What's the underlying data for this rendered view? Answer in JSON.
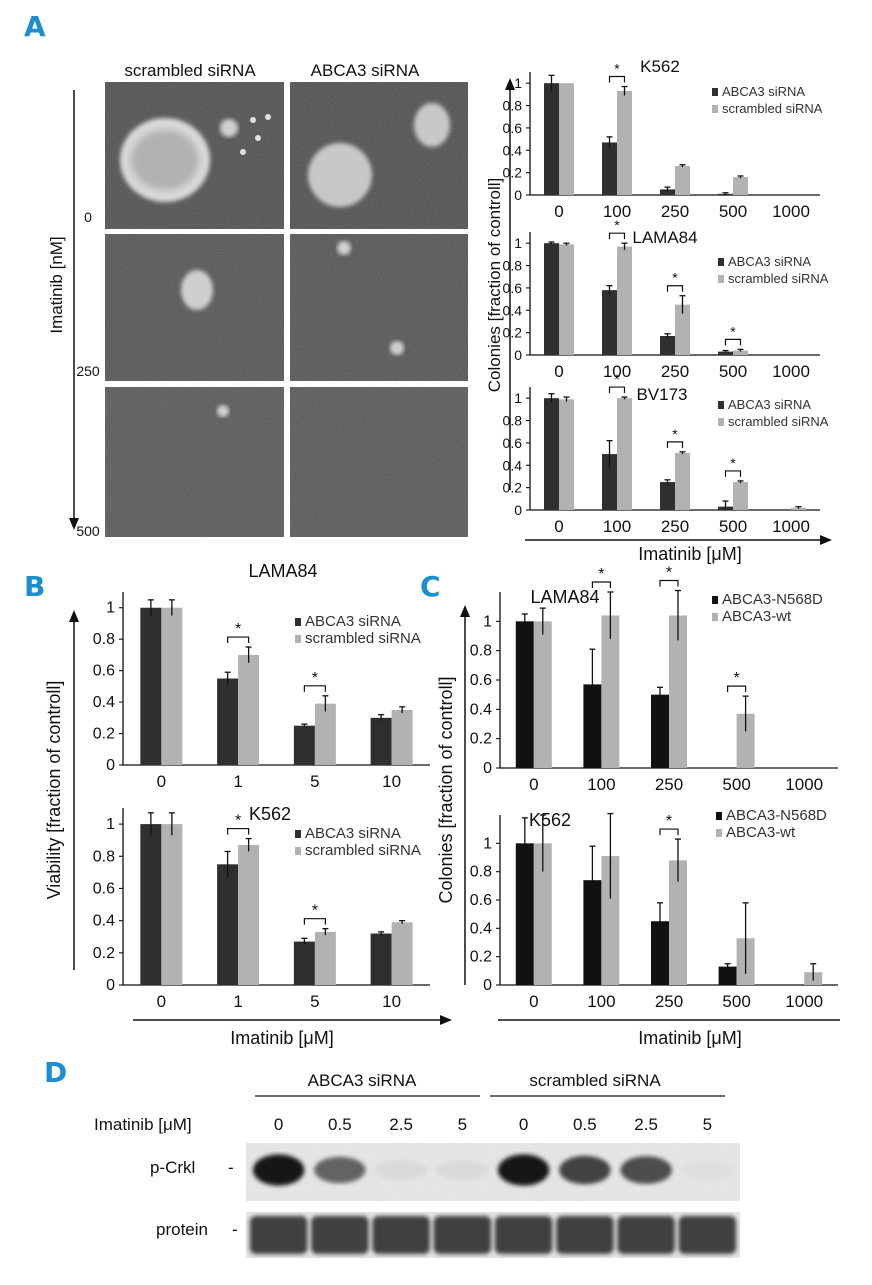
{
  "panel_letters": {
    "a": "A",
    "b": "B",
    "c": "C",
    "d": "D"
  },
  "colors": {
    "accent": "#1a8fd0",
    "abca3": "#333333",
    "scrambled": "#b0b0b0",
    "n568d": "#111111",
    "wt": "#b0b0b0"
  },
  "panel_a": {
    "col_labels": [
      "scrambled siRNA",
      "ABCA3 siRNA"
    ],
    "row_labels": [
      "0",
      "250",
      "500"
    ],
    "y_title": "Imatinib [nM]"
  },
  "labels": {
    "colonies_axis": "Colonies [fraction of controll]",
    "viability_axis": "Viability [fraction of controll]",
    "imatinib_axis": "Imatinib [μM]"
  },
  "chart_data": [
    {
      "id": "a_k562",
      "type": "bar",
      "title": "K562",
      "categories": [
        "0",
        "100",
        "250",
        "500",
        "1000"
      ],
      "series": [
        {
          "name": "ABCA3 siRNA",
          "values": [
            1.0,
            0.47,
            0.05,
            0.01,
            0.0
          ],
          "errors": [
            0.07,
            0.05,
            0.02,
            0.01,
            0.0
          ]
        },
        {
          "name": "scrambled siRNA",
          "values": [
            1.0,
            0.93,
            0.26,
            0.16,
            0.0
          ],
          "errors": [
            0.0,
            0.04,
            0.01,
            0.01,
            0.0
          ]
        }
      ],
      "yticks": [
        "0",
        "0.2",
        "0.4",
        "0.6",
        "0.8",
        "1"
      ],
      "ylim": [
        0,
        1.1
      ],
      "significance": [
        {
          "cat": 1,
          "label": "*"
        }
      ]
    },
    {
      "id": "a_lama84",
      "type": "bar",
      "title": "LAMA84",
      "categories": [
        "0",
        "100",
        "250",
        "500",
        "1000"
      ],
      "series": [
        {
          "name": "ABCA3 siRNA",
          "values": [
            1.0,
            0.58,
            0.17,
            0.03,
            0.0
          ],
          "errors": [
            0.01,
            0.04,
            0.02,
            0.01,
            0.0
          ]
        },
        {
          "name": "scrambled siRNA",
          "values": [
            0.99,
            0.97,
            0.45,
            0.04,
            0.0
          ],
          "errors": [
            0.01,
            0.03,
            0.08,
            0.01,
            0.0
          ]
        }
      ],
      "yticks": [
        "0",
        "0.2",
        "0.4",
        "0.6",
        "0.8",
        "1"
      ],
      "ylim": [
        0,
        1.1
      ],
      "significance": [
        {
          "cat": 1,
          "label": "*"
        },
        {
          "cat": 2,
          "label": "*"
        },
        {
          "cat": 3,
          "label": "*"
        }
      ]
    },
    {
      "id": "a_bv173",
      "type": "bar",
      "title": "BV173",
      "categories": [
        "0",
        "100",
        "250",
        "500",
        "1000"
      ],
      "series": [
        {
          "name": "ABCA3 siRNA",
          "values": [
            1.0,
            0.5,
            0.25,
            0.03,
            0.0
          ],
          "errors": [
            0.04,
            0.12,
            0.02,
            0.05,
            0.0
          ]
        },
        {
          "name": "scrambled siRNA",
          "values": [
            0.99,
            1.0,
            0.51,
            0.25,
            0.02
          ],
          "errors": [
            0.02,
            0.01,
            0.01,
            0.01,
            0.01
          ]
        }
      ],
      "yticks": [
        "0",
        "0.2",
        "0.4",
        "0.6",
        "0.8",
        "1"
      ],
      "ylim": [
        0,
        1.1
      ],
      "significance": [
        {
          "cat": 1,
          "label": "*"
        },
        {
          "cat": 2,
          "label": "*"
        },
        {
          "cat": 3,
          "label": "*"
        }
      ]
    },
    {
      "id": "b_lama84",
      "type": "bar",
      "title": "LAMA84",
      "categories": [
        "0",
        "1",
        "5",
        "10"
      ],
      "series": [
        {
          "name": "ABCA3 siRNA",
          "values": [
            1.0,
            0.55,
            0.25,
            0.3
          ],
          "errors": [
            0.05,
            0.04,
            0.01,
            0.02
          ]
        },
        {
          "name": "scrambled siRNA",
          "values": [
            1.0,
            0.7,
            0.39,
            0.35
          ],
          "errors": [
            0.05,
            0.05,
            0.05,
            0.02
          ]
        }
      ],
      "yticks": [
        "0",
        "0.2",
        "0.4",
        "0.6",
        "0.8",
        "1"
      ],
      "ylim": [
        0,
        1.1
      ],
      "significance": [
        {
          "cat": 1,
          "label": "*"
        },
        {
          "cat": 2,
          "label": "*"
        }
      ]
    },
    {
      "id": "b_k562",
      "type": "bar",
      "title": "K562",
      "categories": [
        "0",
        "1",
        "5",
        "10"
      ],
      "series": [
        {
          "name": "ABCA3 siRNA",
          "values": [
            1.0,
            0.75,
            0.27,
            0.32
          ],
          "errors": [
            0.07,
            0.08,
            0.02,
            0.01
          ]
        },
        {
          "name": "scrambled siRNA",
          "values": [
            1.0,
            0.87,
            0.33,
            0.39
          ],
          "errors": [
            0.07,
            0.04,
            0.02,
            0.01
          ]
        }
      ],
      "yticks": [
        "0",
        "0.2",
        "0.4",
        "0.6",
        "0.8",
        "1"
      ],
      "ylim": [
        0,
        1.1
      ],
      "significance": [
        {
          "cat": 1,
          "label": "*"
        },
        {
          "cat": 2,
          "label": "*"
        }
      ]
    },
    {
      "id": "c_lama84",
      "type": "bar",
      "title": "LAMA84",
      "categories": [
        "0",
        "100",
        "250",
        "500",
        "1000"
      ],
      "series": [
        {
          "name": "ABCA3-N568D",
          "values": [
            1.0,
            0.57,
            0.5,
            0.0,
            0.0
          ],
          "errors": [
            0.05,
            0.24,
            0.05,
            0.0,
            0.0
          ]
        },
        {
          "name": "ABCA3-wt",
          "values": [
            1.0,
            1.04,
            1.04,
            0.37,
            0.0
          ],
          "errors": [
            0.09,
            0.16,
            0.17,
            0.12,
            0.0
          ]
        }
      ],
      "yticks": [
        "0",
        "0.2",
        "0.4",
        "0.6",
        "0.8",
        "1"
      ],
      "ylim": [
        0,
        1.2
      ],
      "significance": [
        {
          "cat": 1,
          "label": "*"
        },
        {
          "cat": 2,
          "label": "*"
        },
        {
          "cat": 3,
          "label": "*"
        }
      ]
    },
    {
      "id": "c_k562",
      "type": "bar",
      "title": "K562",
      "categories": [
        "0",
        "100",
        "250",
        "500",
        "1000"
      ],
      "series": [
        {
          "name": "ABCA3-N568D",
          "values": [
            1.0,
            0.74,
            0.45,
            0.13,
            0.0
          ],
          "errors": [
            0.18,
            0.24,
            0.13,
            0.02,
            0.0
          ]
        },
        {
          "name": "ABCA3-wt",
          "values": [
            1.0,
            0.91,
            0.88,
            0.33,
            0.09
          ],
          "errors": [
            0.2,
            0.3,
            0.15,
            0.25,
            0.06
          ]
        }
      ],
      "yticks": [
        "0",
        "0.2",
        "0.4",
        "0.6",
        "0.8",
        "1"
      ],
      "ylim": [
        0,
        1.2
      ],
      "significance": [
        {
          "cat": 2,
          "label": "*"
        }
      ]
    }
  ],
  "panel_d": {
    "group_labels": [
      "ABCA3 siRNA",
      "scrambled siRNA"
    ],
    "imatinib_label": "Imatinib [μM]",
    "lane_labels": [
      "0",
      "0.5",
      "2.5",
      "5",
      "0",
      "0.5",
      "2.5",
      "5"
    ],
    "row_labels": [
      "p-Crkl",
      "protein"
    ],
    "pcrkl_intensity": [
      0.95,
      0.6,
      0.08,
      0.08,
      0.95,
      0.75,
      0.7,
      0.06
    ],
    "protein_intensity": [
      0.8,
      0.8,
      0.8,
      0.8,
      0.8,
      0.8,
      0.8,
      0.8
    ]
  }
}
